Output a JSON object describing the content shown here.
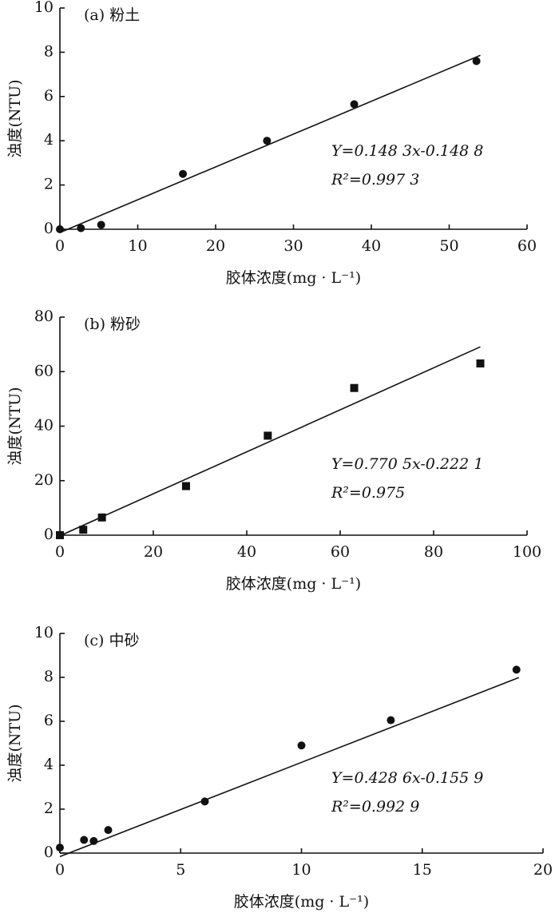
{
  "chart_data": [
    {
      "type": "scatter",
      "title": "(a) 粉土",
      "x_label": "胶体浓度(mg · L⁻¹)",
      "y_label": "浊度(NTU)",
      "x": [
        0,
        2.7,
        5.3,
        15.8,
        26.6,
        37.8,
        53.5
      ],
      "values": [
        0,
        0.05,
        0.2,
        2.5,
        4.0,
        5.65,
        7.6
      ],
      "fit": {
        "x": [
          0,
          54
        ],
        "values": [
          -0.15,
          7.86
        ]
      },
      "equation": "Y=0.148 3x-0.148 8",
      "r2": "R²=0.997 3",
      "marker": "circle",
      "color": "#111",
      "xlim": [
        0,
        60
      ],
      "xticks": [
        0,
        10,
        20,
        30,
        40,
        50,
        60
      ],
      "ylim": [
        0,
        10
      ],
      "yticks": [
        0,
        2,
        4,
        6,
        8,
        10
      ]
    },
    {
      "type": "scatter",
      "title": "(b) 粉砂",
      "x_label": "胶体浓度(mg · L⁻¹)",
      "y_label": "浊度(NTU)",
      "x": [
        0,
        5,
        9,
        27,
        44.5,
        63,
        90
      ],
      "values": [
        0,
        2,
        6.5,
        18,
        36.5,
        54,
        63
      ],
      "fit": {
        "x": [
          0,
          90
        ],
        "values": [
          -0.22,
          69.1
        ]
      },
      "equation": "Y=0.770 5x-0.222 1",
      "r2": "R²=0.975",
      "marker": "square",
      "color": "#111",
      "xlim": [
        0,
        100
      ],
      "xticks": [
        0,
        20,
        40,
        60,
        80,
        100
      ],
      "ylim": [
        0,
        80
      ],
      "yticks": [
        0,
        20,
        40,
        60,
        80
      ]
    },
    {
      "type": "scatter",
      "title": "(c) 中砂",
      "x_label": "胶体浓度(mg · L⁻¹)",
      "y_label": "浊度(NTU)",
      "x": [
        0,
        1,
        1.4,
        2,
        6,
        10,
        13.7,
        18.9
      ],
      "values": [
        0.25,
        0.6,
        0.55,
        1.05,
        2.35,
        4.9,
        6.05,
        8.35
      ],
      "fit": {
        "x": [
          0,
          19
        ],
        "values": [
          -0.16,
          7.99
        ]
      },
      "equation": "Y=0.428 6x-0.155 9",
      "r2": "R²=0.992 9",
      "marker": "circle",
      "color": "#111",
      "xlim": [
        0,
        20
      ],
      "xticks": [
        0,
        5,
        10,
        15,
        20
      ],
      "ylim": [
        0,
        10
      ],
      "yticks": [
        0,
        2,
        4,
        6,
        8,
        10
      ]
    }
  ]
}
